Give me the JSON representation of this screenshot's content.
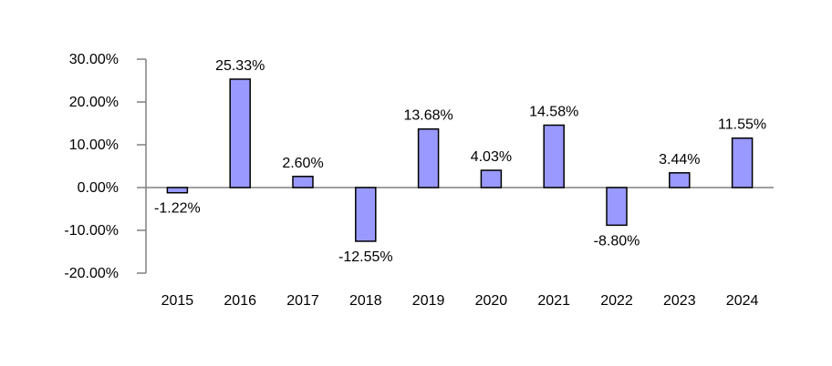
{
  "chart_data": {
    "type": "bar",
    "categories": [
      "2015",
      "2016",
      "2017",
      "2018",
      "2019",
      "2020",
      "2021",
      "2022",
      "2023",
      "2024"
    ],
    "series": [
      {
        "values": [
          -1.22,
          25.33,
          2.6,
          -12.55,
          13.68,
          4.03,
          14.58,
          -8.8,
          3.44,
          11.55
        ],
        "data_labels": [
          "-1.22%",
          "25.33%",
          "2.60%",
          "-12.55%",
          "13.68%",
          "4.03%",
          "14.58%",
          "-8.80%",
          "3.44%",
          "11.55%"
        ]
      }
    ],
    "ylim": [
      -20,
      30
    ],
    "y_ticks": [
      30,
      20,
      10,
      0,
      -10,
      -20
    ],
    "y_tick_labels": [
      "30.00%",
      "20.00%",
      "10.00%",
      "0.00%",
      "-10.00%",
      "-20.00%"
    ],
    "title": "",
    "xlabel": "",
    "ylabel": "",
    "grid": false,
    "legend": "none",
    "colors": {
      "bar_fill": "#9999ff",
      "bar_stroke": "#000000",
      "axis": "#808080"
    }
  }
}
